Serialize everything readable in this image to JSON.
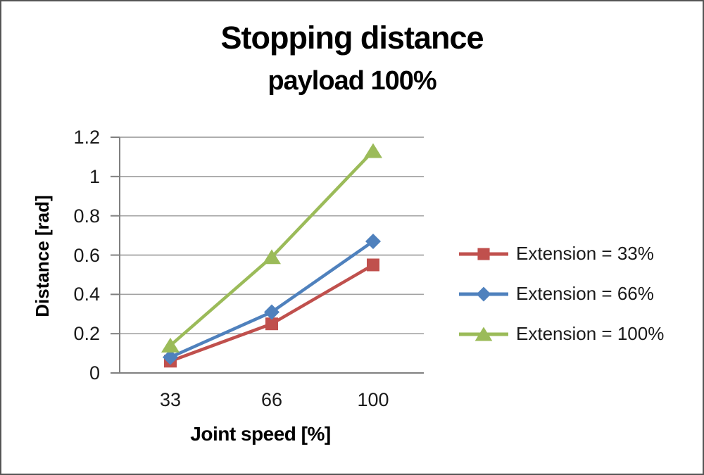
{
  "title": "Stopping distance",
  "subtitle": "payload 100%",
  "chart_data": {
    "type": "line",
    "categories": [
      "33",
      "66",
      "100"
    ],
    "series": [
      {
        "name": "Extension = 33%",
        "color": "#c0504d",
        "marker": "square",
        "values": [
          0.06,
          0.25,
          0.55
        ]
      },
      {
        "name": "Extension = 66%",
        "color": "#4f81bd",
        "marker": "diamond",
        "values": [
          0.08,
          0.31,
          0.67
        ]
      },
      {
        "name": "Extension = 100%",
        "color": "#9bbb59",
        "marker": "triangle",
        "values": [
          0.14,
          0.59,
          1.13
        ]
      }
    ],
    "xlabel": "Joint speed [%]",
    "ylabel": "Distance [rad]",
    "ylim": [
      0,
      1.2
    ],
    "yticks": [
      0,
      0.2,
      0.4,
      0.6,
      0.8,
      1,
      1.2
    ],
    "ytick_labels": [
      "0",
      "0.2",
      "0.4",
      "0.6",
      "0.8",
      "1",
      "1.2"
    ],
    "grid": "horizontal",
    "legend_position": "right",
    "gridline_color": "#a3a3a3",
    "axis_color": "#808080",
    "text_color": "#1a1a1a"
  }
}
